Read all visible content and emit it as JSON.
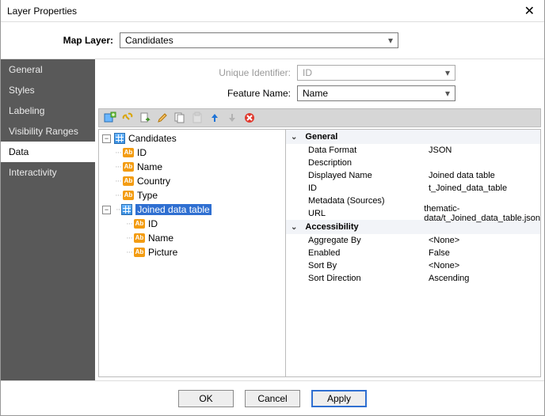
{
  "window": {
    "title": "Layer Properties"
  },
  "mapLayer": {
    "label": "Map Layer:",
    "value": "Candidates"
  },
  "sidebar": {
    "tabs": [
      {
        "label": "General"
      },
      {
        "label": "Styles"
      },
      {
        "label": "Labeling"
      },
      {
        "label": "Visibility Ranges"
      },
      {
        "label": "Data"
      },
      {
        "label": "Interactivity"
      }
    ],
    "activeIndex": 4
  },
  "fields": {
    "uniqueIdentifier": {
      "label": "Unique Identifier:",
      "value": "ID"
    },
    "featureName": {
      "label": "Feature Name:",
      "value": "Name"
    }
  },
  "tree": {
    "root": {
      "label": "Candidates",
      "children": [
        "ID",
        "Name",
        "Country",
        "Type"
      ],
      "joined": {
        "label": "Joined data table",
        "children": [
          "ID",
          "Name",
          "Picture"
        ]
      }
    }
  },
  "properties": {
    "general": {
      "title": "General",
      "rows": [
        {
          "key": "Data Format",
          "value": "JSON"
        },
        {
          "key": "Description",
          "value": ""
        },
        {
          "key": "Displayed Name",
          "value": "Joined data table"
        },
        {
          "key": "ID",
          "value": "t_Joined_data_table"
        },
        {
          "key": "Metadata (Sources)",
          "value": ""
        },
        {
          "key": "URL",
          "value": "thematic-data/t_Joined_data_table.json"
        }
      ]
    },
    "accessibility": {
      "title": "Accessibility",
      "rows": [
        {
          "key": "Aggregate By",
          "value": "<None>"
        },
        {
          "key": "Enabled",
          "value": "False"
        },
        {
          "key": "Sort By",
          "value": "<None>"
        },
        {
          "key": "Sort Direction",
          "value": "Ascending"
        }
      ]
    }
  },
  "buttons": {
    "ok": "OK",
    "cancel": "Cancel",
    "apply": "Apply"
  },
  "colors": {
    "sidebar_bg": "#595959",
    "selection_bg": "#2f6fd1",
    "toolbar_bg": "#d6d6d6",
    "ab_icon": "#f39c12"
  }
}
